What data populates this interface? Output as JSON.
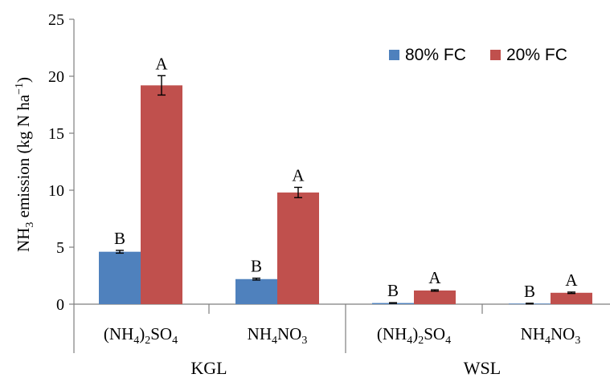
{
  "chart_data": {
    "type": "bar",
    "ylabel": {
      "pre": "NH",
      "pre_sub": "3",
      "main": " emission (kg N ha",
      "sup": "−1",
      "post": ")"
    },
    "ylim": [
      0,
      25
    ],
    "yticks": [
      "0",
      "5",
      "10",
      "15",
      "20",
      "25"
    ],
    "groups": [
      {
        "name": "KGL",
        "categories": [
          {
            "parts": [
              "(NH",
              "4",
              ")",
              "2",
              "SO",
              "4"
            ]
          },
          {
            "parts": [
              "NH",
              "4",
              "NO",
              "3",
              "",
              ""
            ]
          }
        ]
      },
      {
        "name": "WSL",
        "categories": [
          {
            "parts": [
              "(NH",
              "4",
              ")",
              "2",
              "SO",
              "4"
            ]
          },
          {
            "parts": [
              "NH",
              "4",
              "NO",
              "3",
              "",
              ""
            ]
          }
        ]
      }
    ],
    "series": [
      {
        "name": "80% FC",
        "color": "#4f81bd",
        "values": [
          4.6,
          2.2,
          0.1,
          0.05
        ],
        "errors": [
          0.12,
          0.08,
          0.03,
          0.03
        ],
        "labels": [
          "B",
          "B",
          "B",
          "B"
        ]
      },
      {
        "name": "20% FC",
        "color": "#c0504d",
        "values": [
          19.2,
          9.8,
          1.2,
          1.0
        ],
        "errors": [
          0.85,
          0.45,
          0.06,
          0.06
        ],
        "labels": [
          "A",
          "A",
          "A",
          "A"
        ]
      }
    ],
    "grid": false,
    "legend": "top-right"
  }
}
